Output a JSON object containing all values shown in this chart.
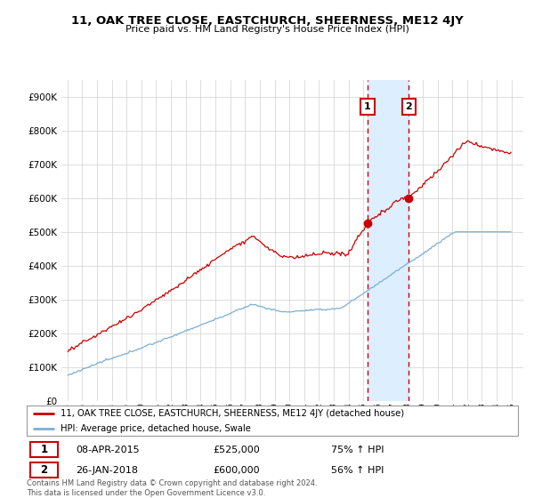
{
  "title": "11, OAK TREE CLOSE, EASTCHURCH, SHEERNESS, ME12 4JY",
  "subtitle": "Price paid vs. HM Land Registry's House Price Index (HPI)",
  "legend_label_red": "11, OAK TREE CLOSE, EASTCHURCH, SHEERNESS, ME12 4JY (detached house)",
  "legend_label_blue": "HPI: Average price, detached house, Swale",
  "sale1_date": "08-APR-2015",
  "sale1_price": 525000,
  "sale1_hpi": "75% ↑ HPI",
  "sale2_date": "26-JAN-2018",
  "sale2_price": 600000,
  "sale2_hpi": "56% ↑ HPI",
  "footer": "Contains HM Land Registry data © Crown copyright and database right 2024.\nThis data is licensed under the Open Government Licence v3.0.",
  "red_color": "#cc0000",
  "blue_color": "#7bafd4",
  "highlight_color": "#ddeeff",
  "ylim": [
    0,
    950000
  ],
  "yticks": [
    0,
    100000,
    200000,
    300000,
    400000,
    500000,
    600000,
    700000,
    800000,
    900000
  ],
  "ytick_labels": [
    "£0",
    "£100K",
    "£200K",
    "£300K",
    "£400K",
    "£500K",
    "£600K",
    "£700K",
    "£800K",
    "£900K"
  ],
  "sale1_x": 2015.27,
  "sale2_x": 2018.07
}
